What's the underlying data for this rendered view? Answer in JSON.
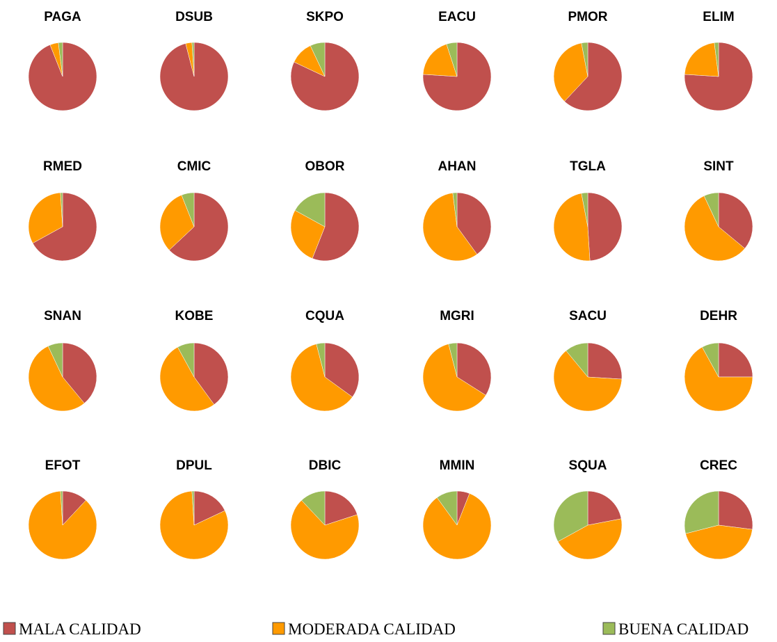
{
  "chart_data": {
    "type": "pie",
    "categories": [
      "PAGA",
      "DSUB",
      "SKPO",
      "EACU",
      "PMOR",
      "ELIM",
      "RMED",
      "CMIC",
      "OBOR",
      "AHAN",
      "TGLA",
      "SINT",
      "SNAN",
      "KOBE",
      "CQUA",
      "MGRI",
      "SACU",
      "DEHR",
      "EFOT",
      "DPUL",
      "DBIC",
      "MMIN",
      "SQUA",
      "CREC"
    ],
    "series": [
      {
        "name": "MALA CALIDAD",
        "color": "#c0504d",
        "values": [
          94,
          96,
          82,
          76,
          62,
          76,
          67,
          63,
          56,
          40,
          49,
          36,
          39,
          40,
          35,
          34,
          26,
          25,
          12,
          18,
          20,
          6,
          22,
          27
        ]
      },
      {
        "name": "MODERADA CALIDAD",
        "color": "#ff9a00",
        "values": [
          4,
          3,
          11,
          19,
          35,
          22,
          32,
          31,
          27,
          58,
          48,
          57,
          54,
          52,
          61,
          62,
          63,
          67,
          87,
          81,
          68,
          84,
          45,
          44
        ]
      },
      {
        "name": "BUENA CALIDAD",
        "color": "#9bbb59",
        "values": [
          2,
          1,
          7,
          5,
          3,
          2,
          1,
          6,
          17,
          2,
          3,
          7,
          7,
          8,
          4,
          4,
          11,
          8,
          1,
          1,
          12,
          10,
          33,
          29
        ]
      }
    ]
  }
}
